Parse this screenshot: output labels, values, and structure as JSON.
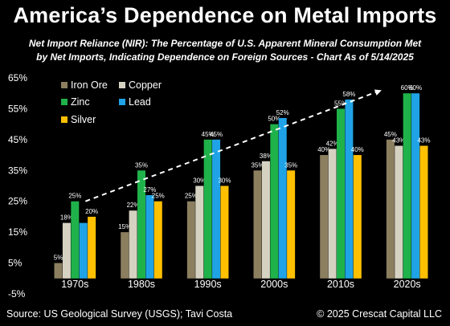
{
  "title": "America’s Dependence on Metal Imports",
  "subtitle_line1": "Net Import Reliance (NIR): The Percentage of U.S. Apparent Mineral Consumption Met",
  "subtitle_line2": "by Net Imports, Indicating Dependence on Foreign Sources - Chart As of 5/14/2025",
  "source": "Source: US Geological Survey (USGS); Tavi Costa",
  "copyright": "© 2025 Crescat Capital LLC",
  "chart_data": {
    "type": "bar",
    "categories": [
      "1970s",
      "1980s",
      "1990s",
      "2000s",
      "2010s",
      "2020s"
    ],
    "series": [
      {
        "name": "Iron Ore",
        "color": "#8b7f5f",
        "values": [
          5,
          15,
          25,
          35,
          40,
          45
        ]
      },
      {
        "name": "Copper",
        "color": "#d6d2c2",
        "values": [
          18,
          22,
          30,
          38,
          42,
          43
        ]
      },
      {
        "name": "Zinc",
        "color": "#1fb24a",
        "values": [
          25,
          35,
          45,
          50,
          55,
          60
        ]
      },
      {
        "name": "Lead",
        "color": "#1fa3e6",
        "values": [
          18,
          27,
          45,
          52,
          58,
          60
        ]
      },
      {
        "name": "Silver",
        "color": "#ffc000",
        "values": [
          20,
          25,
          30,
          35,
          40,
          43
        ]
      }
    ],
    "data_labels": [
      [
        "5%",
        "18%",
        "25%",
        null,
        "20%"
      ],
      [
        "15%",
        "22%",
        "35%",
        "27%",
        "25%"
      ],
      [
        "25%",
        "30%",
        "45%",
        "45%",
        "30%"
      ],
      [
        "35%",
        "38%",
        "50%",
        "52%",
        "35%"
      ],
      [
        "40%",
        "42%",
        "55%",
        "58%",
        "40%"
      ],
      [
        "45%",
        "43%",
        "60%",
        "60%",
        "43%"
      ]
    ],
    "y_ticks": [
      "-5%",
      "5%",
      "15%",
      "25%",
      "35%",
      "45%",
      "55%",
      "65%"
    ],
    "y_tick_values": [
      -5,
      5,
      15,
      25,
      35,
      45,
      55,
      65
    ],
    "ylim": [
      -5,
      65
    ],
    "legend_position": "top-left",
    "trend_arrow": {
      "from": [
        "1970s",
        25
      ],
      "to": [
        "2020s",
        61
      ],
      "style": "dashed",
      "color": "#ffffff"
    }
  }
}
